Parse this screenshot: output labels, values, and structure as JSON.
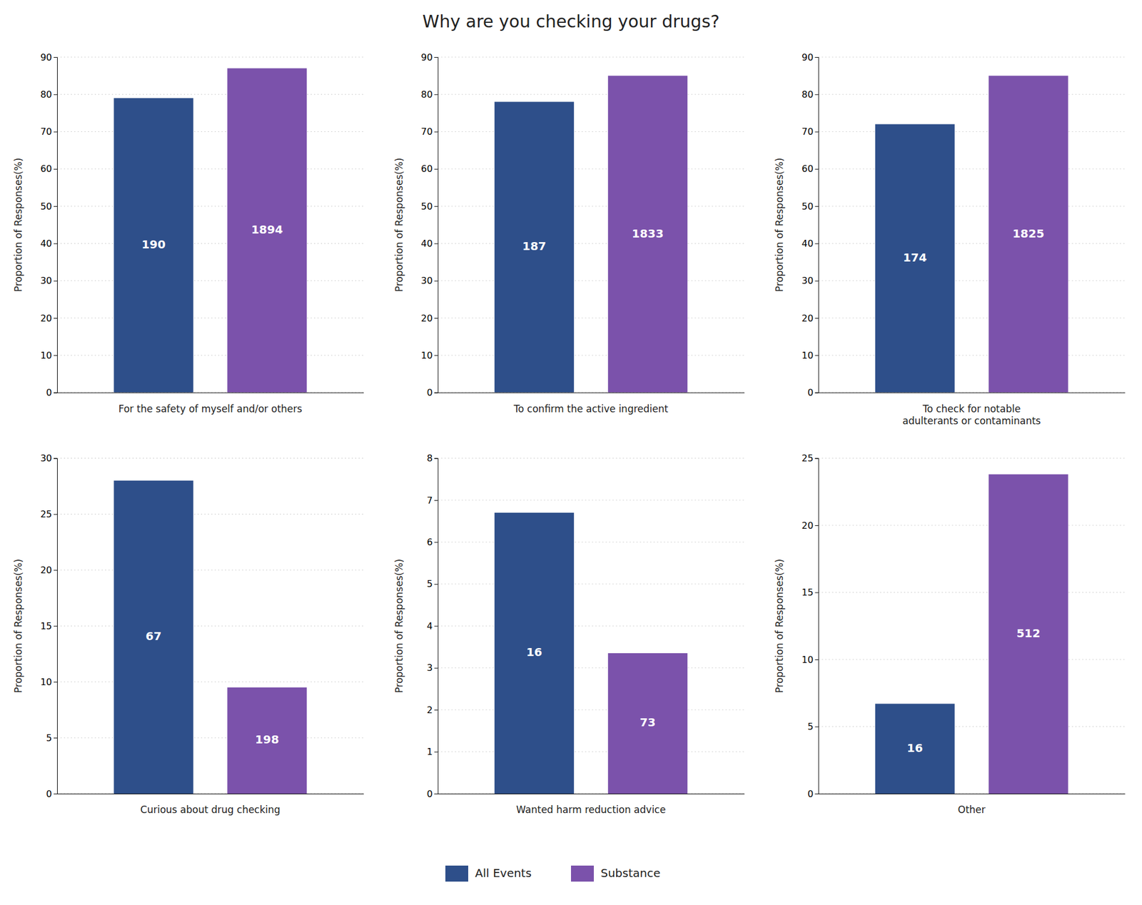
{
  "title": "Why are you checking your drugs?",
  "chart_data": [
    {
      "type": "bar",
      "xlabel": "For the safety of myself and/or others",
      "ylabel": "Proportion of Responses(%)",
      "series": [
        {
          "name": "All Events",
          "color": "#2e4f8a",
          "values": [
            79
          ],
          "counts": [
            190
          ]
        },
        {
          "name": "Substance",
          "color": "#7b52ab",
          "values": [
            87
          ],
          "counts": [
            1894
          ]
        }
      ],
      "ylim": [
        0,
        90
      ],
      "yticks": [
        0,
        10,
        20,
        30,
        40,
        50,
        60,
        70,
        80,
        90
      ],
      "grid": true,
      "tick_labels": "y",
      "legend": "bottom"
    },
    {
      "type": "bar",
      "xlabel": "To confirm the active ingredient",
      "ylabel": "Proportion of Responses(%)",
      "series": [
        {
          "name": "All Events",
          "color": "#2e4f8a",
          "values": [
            78
          ],
          "counts": [
            187
          ]
        },
        {
          "name": "Substance",
          "color": "#7b52ab",
          "values": [
            85
          ],
          "counts": [
            1833
          ]
        }
      ],
      "ylim": [
        0,
        90
      ],
      "yticks": [
        0,
        10,
        20,
        30,
        40,
        50,
        60,
        70,
        80,
        90
      ],
      "grid": true,
      "tick_labels": "y"
    },
    {
      "type": "bar",
      "xlabel": "To check for notable\nadulterants or contaminants",
      "ylabel": "Proportion of Responses(%)",
      "series": [
        {
          "name": "All Events",
          "color": "#2e4f8a",
          "values": [
            72
          ],
          "counts": [
            174
          ]
        },
        {
          "name": "Substance",
          "color": "#7b52ab",
          "values": [
            85
          ],
          "counts": [
            1825
          ]
        }
      ],
      "ylim": [
        0,
        90
      ],
      "yticks": [
        0,
        10,
        20,
        30,
        40,
        50,
        60,
        70,
        80,
        90
      ],
      "grid": true,
      "tick_labels": "y"
    },
    {
      "type": "bar",
      "xlabel": "Curious about drug checking",
      "ylabel": "Proportion of Responses(%)",
      "series": [
        {
          "name": "All Events",
          "color": "#2e4f8a",
          "values": [
            28
          ],
          "counts": [
            67
          ]
        },
        {
          "name": "Substance",
          "color": "#7b52ab",
          "values": [
            9.5
          ],
          "counts": [
            198
          ]
        }
      ],
      "ylim": [
        0,
        30
      ],
      "yticks": [
        0,
        5,
        10,
        15,
        20,
        25,
        30
      ],
      "grid": true,
      "tick_labels": "y"
    },
    {
      "type": "bar",
      "xlabel": "Wanted harm reduction advice",
      "ylabel": "Proportion of Responses(%)",
      "series": [
        {
          "name": "All Events",
          "color": "#2e4f8a",
          "values": [
            6.7
          ],
          "counts": [
            16
          ]
        },
        {
          "name": "Substance",
          "color": "#7b52ab",
          "values": [
            3.35
          ],
          "counts": [
            73
          ]
        }
      ],
      "ylim": [
        0,
        8
      ],
      "yticks": [
        0,
        1,
        2,
        3,
        4,
        5,
        6,
        7,
        8
      ],
      "grid": true,
      "tick_labels": "y"
    },
    {
      "type": "bar",
      "xlabel": "Other",
      "ylabel": "Proportion of Responses(%)",
      "series": [
        {
          "name": "All Events",
          "color": "#2e4f8a",
          "values": [
            6.7
          ],
          "counts": [
            16
          ]
        },
        {
          "name": "Substance",
          "color": "#7b52ab",
          "values": [
            23.8
          ],
          "counts": [
            512
          ]
        }
      ],
      "ylim": [
        0,
        25
      ],
      "yticks": [
        0,
        5,
        10,
        15,
        20,
        25
      ],
      "grid": true,
      "tick_labels": "y"
    }
  ]
}
